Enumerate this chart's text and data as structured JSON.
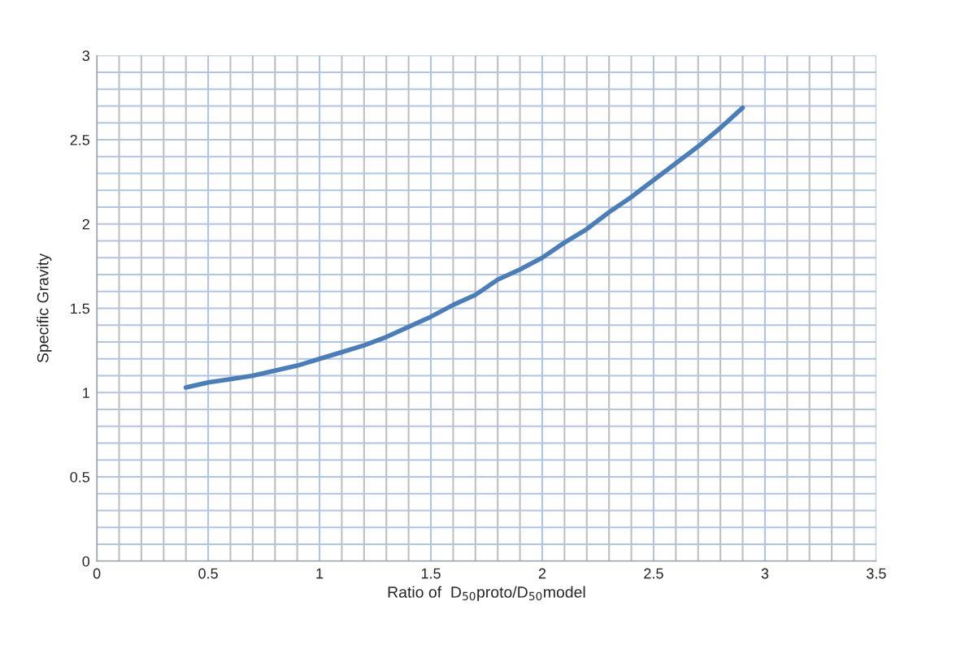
{
  "chart_data": {
    "type": "line",
    "xlabel": "Ratio of  D$_{50}$proto/D$_{50}$model",
    "ylabel": "Specific Gravity",
    "x": [
      0.4,
      0.5,
      0.6,
      0.7,
      0.8,
      0.9,
      1.0,
      1.1,
      1.2,
      1.3,
      1.4,
      1.5,
      1.6,
      1.7,
      1.8,
      1.9,
      2.0,
      2.1,
      2.2,
      2.3,
      2.4,
      2.5,
      2.6,
      2.7,
      2.8,
      2.9
    ],
    "series": [
      {
        "color": "#4a7ebb",
        "values": [
          1.03,
          1.06,
          1.08,
          1.1,
          1.13,
          1.16,
          1.2,
          1.24,
          1.28,
          1.33,
          1.39,
          1.45,
          1.52,
          1.58,
          1.67,
          1.73,
          1.8,
          1.89,
          1.97,
          2.07,
          2.16,
          2.26,
          2.36,
          2.46,
          2.57,
          2.69
        ]
      }
    ],
    "xlim": [
      0,
      3.5
    ],
    "xticks": [
      0,
      {
        "value": 0.1,
        "label": null
      },
      {
        "value": 0.2,
        "label": null
      },
      {
        "value": 0.3,
        "label": null
      },
      {
        "value": 0.4,
        "label": null
      },
      0.5,
      {
        "value": 0.6,
        "label": null
      },
      {
        "value": 0.7,
        "label": null
      },
      {
        "value": 0.8,
        "label": null
      },
      {
        "value": 0.9,
        "label": null
      },
      1,
      {
        "value": 1.1,
        "label": null
      },
      {
        "value": 1.2,
        "label": null
      },
      {
        "value": 1.3,
        "label": null
      },
      {
        "value": 1.4,
        "label": null
      },
      1.5,
      {
        "value": 1.6,
        "label": null
      },
      {
        "value": 1.7,
        "label": null
      },
      {
        "value": 1.8,
        "label": null
      },
      {
        "value": 1.9,
        "label": null
      },
      2,
      {
        "value": 2.1,
        "label": null
      },
      {
        "value": 2.2,
        "label": null
      },
      {
        "value": 2.3,
        "label": null
      },
      {
        "value": 2.4,
        "label": null
      },
      2.5,
      {
        "value": 2.6,
        "label": null
      },
      {
        "value": 2.7,
        "label": null
      },
      {
        "value": 2.8,
        "label": null
      },
      {
        "value": 2.9,
        "label": null
      },
      3,
      {
        "value": 3.1,
        "label": null
      },
      {
        "value": 3.2,
        "label": null
      },
      {
        "value": 3.3,
        "label": null
      },
      {
        "value": 3.4,
        "label": null
      },
      3.5
    ],
    "ylim": [
      0,
      3
    ],
    "yticks": [
      0,
      {
        "value": 0.1,
        "label": null
      },
      {
        "value": 0.2,
        "label": null
      },
      {
        "value": 0.3,
        "label": null
      },
      {
        "value": 0.4,
        "label": null
      },
      0.5,
      {
        "value": 0.6,
        "label": null
      },
      {
        "value": 0.7,
        "label": null
      },
      {
        "value": 0.8,
        "label": null
      },
      {
        "value": 0.9,
        "label": null
      },
      1,
      {
        "value": 1.1,
        "label": null
      },
      {
        "value": 1.2,
        "label": null
      },
      {
        "value": 1.3,
        "label": null
      },
      {
        "value": 1.4,
        "label": null
      },
      1.5,
      {
        "value": 1.6,
        "label": null
      },
      {
        "value": 1.7,
        "label": null
      },
      {
        "value": 1.8,
        "label": null
      },
      {
        "value": 1.9,
        "label": null
      },
      2,
      {
        "value": 2.1,
        "label": null
      },
      {
        "value": 2.2,
        "label": null
      },
      {
        "value": 2.3,
        "label": null
      },
      {
        "value": 2.4,
        "label": null
      },
      2.5,
      {
        "value": 2.6,
        "label": null
      },
      {
        "value": 2.7,
        "label": null
      },
      {
        "value": 2.8,
        "label": null
      },
      {
        "value": 2.9,
        "label": null
      },
      3
    ],
    "grid": true,
    "legend": false,
    "marker": "none",
    "line_style": "solid"
  }
}
